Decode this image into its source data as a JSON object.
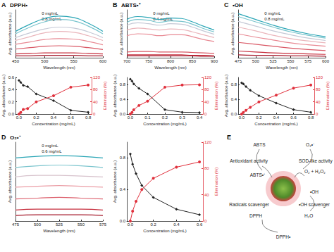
{
  "chart_data": [
    {
      "label": "A",
      "title": "DPPH•",
      "type": "line",
      "x_label": "Wavelength (nm)",
      "y_label": "Avg. absorbance (a.u.)",
      "x": [
        450,
        475,
        500,
        525,
        550,
        575,
        600
      ],
      "xlim": [
        450,
        600
      ],
      "xticks": [
        450,
        500,
        550,
        600
      ],
      "ylim": [
        0,
        1
      ],
      "tick_labels": "x",
      "grid": false,
      "annotations": [
        "0 mg/mL",
        "0.8 mg/mL"
      ],
      "series": [
        {
          "color": "#2ba6b6",
          "values": [
            0.55,
            0.7,
            0.82,
            0.87,
            0.84,
            0.72,
            0.55
          ]
        },
        {
          "color": "#79c4cd",
          "values": [
            0.5,
            0.64,
            0.75,
            0.8,
            0.77,
            0.66,
            0.5
          ]
        },
        {
          "color": "#c5c9d6",
          "values": [
            0.42,
            0.52,
            0.6,
            0.64,
            0.62,
            0.54,
            0.42
          ]
        },
        {
          "color": "#eab5bb",
          "values": [
            0.36,
            0.44,
            0.52,
            0.55,
            0.53,
            0.46,
            0.36
          ]
        },
        {
          "color": "#e88a94",
          "values": [
            0.28,
            0.33,
            0.38,
            0.4,
            0.39,
            0.34,
            0.27
          ]
        },
        {
          "color": "#d95865",
          "values": [
            0.18,
            0.21,
            0.24,
            0.25,
            0.24,
            0.21,
            0.17
          ]
        },
        {
          "color": "#c7303f",
          "values": [
            0.08,
            0.09,
            0.1,
            0.1,
            0.1,
            0.09,
            0.08
          ]
        },
        {
          "color": "#a51b2c",
          "values": [
            0.04,
            0.04,
            0.05,
            0.05,
            0.05,
            0.04,
            0.04
          ]
        }
      ]
    },
    {
      "type": "line",
      "x_label": "Concentration (mg/mL)",
      "y_label": "Avg. absorbance (a.u.)",
      "y2_label": "Elimination (%)",
      "x": [
        0,
        0.02,
        0.05,
        0.1,
        0.2,
        0.4,
        0.6,
        0.8
      ],
      "xlim": [
        -0.04,
        0.84
      ],
      "xticks": [
        {
          "value": 0,
          "label": "0.0"
        },
        0.2,
        0.4,
        0.6,
        0.8
      ],
      "ylim": [
        0,
        0.6
      ],
      "yticks": [
        {
          "value": 0,
          "label": "0.0"
        },
        0.2,
        0.4,
        0.6
      ],
      "y2lim": [
        0,
        120
      ],
      "y2ticks": [
        0,
        40,
        80,
        120
      ],
      "grid": false,
      "series": [
        {
          "color": "#222222",
          "marker": "diamond",
          "line_style": "solid",
          "values": [
            0.55,
            0.52,
            0.47,
            0.45,
            0.33,
            0.22,
            0.06,
            0.03
          ]
        },
        {
          "color": "#e0303c",
          "marker": "circle",
          "line_style": "solid",
          "axis": "y2",
          "values": [
            0,
            5,
            15,
            18,
            40,
            60,
            88,
            95
          ]
        }
      ]
    },
    {
      "label": "B",
      "title": "ABTS•⁺",
      "type": "line",
      "x_label": "Wavelength (nm)",
      "y_label": "Avg. absorbance (a.u.)",
      "x": [
        700,
        725,
        750,
        775,
        800,
        825,
        850,
        875,
        900
      ],
      "xlim": [
        700,
        900
      ],
      "xticks": [
        700,
        750,
        800,
        850,
        900
      ],
      "ylim": [
        0,
        1
      ],
      "tick_labels": "x",
      "grid": false,
      "annotations": [
        "0 mg/mL",
        "0.4 mg/mL"
      ],
      "series": [
        {
          "color": "#2ba6b6",
          "values": [
            0.8,
            0.86,
            0.84,
            0.8,
            0.83,
            0.82,
            0.75,
            0.66,
            0.58
          ]
        },
        {
          "color": "#79c4cd",
          "values": [
            0.74,
            0.8,
            0.78,
            0.74,
            0.77,
            0.76,
            0.7,
            0.61,
            0.54
          ]
        },
        {
          "color": "#c5c9d6",
          "values": [
            0.68,
            0.73,
            0.71,
            0.68,
            0.71,
            0.7,
            0.64,
            0.56,
            0.49
          ]
        },
        {
          "color": "#eab5bb",
          "values": [
            0.58,
            0.62,
            0.6,
            0.58,
            0.6,
            0.59,
            0.54,
            0.48,
            0.42
          ]
        },
        {
          "color": "#e88a94",
          "values": [
            0.46,
            0.5,
            0.49,
            0.46,
            0.48,
            0.48,
            0.44,
            0.38,
            0.34
          ]
        },
        {
          "color": "#d95865",
          "values": [
            0.12,
            0.13,
            0.13,
            0.12,
            0.12,
            0.12,
            0.11,
            0.1,
            0.09
          ]
        },
        {
          "color": "#c7303f",
          "values": [
            0.06,
            0.06,
            0.06,
            0.06,
            0.06,
            0.06,
            0.05,
            0.05,
            0.04
          ]
        },
        {
          "color": "#a51b2c",
          "values": [
            0.04,
            0.04,
            0.04,
            0.04,
            0.04,
            0.04,
            0.04,
            0.03,
            0.03
          ]
        }
      ]
    },
    {
      "type": "line",
      "x_label": "Concentration (mg/mL)",
      "y_label": "Avg. absorbance (a.u.)",
      "y2_label": "Elimination (%)",
      "x": [
        0,
        0.01,
        0.02,
        0.05,
        0.1,
        0.2,
        0.3,
        0.4
      ],
      "xlim": [
        -0.02,
        0.42
      ],
      "xticks": [
        {
          "value": 0,
          "label": "0.0"
        },
        0.1,
        0.2,
        0.3,
        0.4
      ],
      "ylim": [
        0,
        1
      ],
      "yticks": [
        {
          "value": 0,
          "label": "0.0"
        },
        0.4,
        0.8
      ],
      "y2lim": [
        0,
        120
      ],
      "y2ticks": [
        0,
        40,
        80,
        120
      ],
      "grid": false,
      "series": [
        {
          "color": "#222222",
          "marker": "diamond",
          "line_style": "solid",
          "values": [
            0.95,
            0.9,
            0.82,
            0.7,
            0.55,
            0.12,
            0.05,
            0.04
          ]
        },
        {
          "color": "#e0303c",
          "marker": "circle",
          "line_style": "solid",
          "axis": "y2",
          "values": [
            0,
            5,
            14,
            28,
            42,
            88,
            95,
            96
          ]
        }
      ]
    },
    {
      "label": "C",
      "title": "•OH",
      "type": "line",
      "x_label": "Wavelength (nm)",
      "y_label": "Avg. absorbance (a.u.)",
      "x": [
        475,
        500,
        525,
        550,
        575,
        600
      ],
      "xlim": [
        475,
        600
      ],
      "xticks": [
        475,
        500,
        525,
        550,
        575,
        600
      ],
      "ylim": [
        0,
        1
      ],
      "tick_labels": "x",
      "grid": false,
      "annotations": [
        "0 mg/mL",
        "0.8 mg/mL"
      ],
      "series": [
        {
          "color": "#2ba6b6",
          "values": [
            0.92,
            0.8,
            0.68,
            0.58,
            0.5,
            0.44
          ]
        },
        {
          "color": "#79c4cd",
          "values": [
            0.86,
            0.75,
            0.64,
            0.54,
            0.47,
            0.41
          ]
        },
        {
          "color": "#c5c9d6",
          "values": [
            0.76,
            0.66,
            0.56,
            0.48,
            0.41,
            0.36
          ]
        },
        {
          "color": "#eab5bb",
          "values": [
            0.64,
            0.56,
            0.47,
            0.4,
            0.35,
            0.31
          ]
        },
        {
          "color": "#e88a94",
          "values": [
            0.5,
            0.43,
            0.37,
            0.31,
            0.27,
            0.24
          ]
        },
        {
          "color": "#d95865",
          "values": [
            0.32,
            0.28,
            0.24,
            0.2,
            0.17,
            0.15
          ]
        },
        {
          "color": "#c7303f",
          "values": [
            0.14,
            0.12,
            0.1,
            0.09,
            0.08,
            0.07
          ]
        },
        {
          "color": "#a51b2c",
          "values": [
            0.06,
            0.05,
            0.05,
            0.04,
            0.04,
            0.03
          ]
        }
      ]
    },
    {
      "type": "line",
      "x_label": "Concentration (mg/mL)",
      "y_label": "Avg. absorbance (a.u.)",
      "y2_label": "Elimination (%)",
      "x": [
        0,
        0.02,
        0.05,
        0.1,
        0.2,
        0.4,
        0.6,
        0.8
      ],
      "xlim": [
        -0.04,
        0.84
      ],
      "xticks": [
        {
          "value": 0,
          "label": "0.0"
        },
        0.2,
        0.4,
        0.6,
        0.8
      ],
      "ylim": [
        0,
        1
      ],
      "yticks": [
        {
          "value": 0,
          "label": "0.0"
        },
        0.4,
        0.8
      ],
      "y2lim": [
        0,
        120
      ],
      "y2ticks": [
        0,
        40,
        80,
        120
      ],
      "grid": false,
      "series": [
        {
          "color": "#222222",
          "marker": "diamond",
          "line_style": "solid",
          "values": [
            0.85,
            0.82,
            0.75,
            0.65,
            0.5,
            0.3,
            0.12,
            0.05
          ]
        },
        {
          "color": "#e0303c",
          "marker": "circle",
          "line_style": "solid",
          "axis": "y2",
          "values": [
            0,
            5,
            12,
            22,
            40,
            62,
            85,
            95
          ]
        }
      ]
    },
    {
      "label": "D",
      "title": "O₂•⁻",
      "type": "line",
      "x_label": "Wavelength (nm)",
      "y_label": "Avg. absorbance (a.u.)",
      "x": [
        475,
        500,
        525,
        550,
        575
      ],
      "xlim": [
        475,
        575
      ],
      "xticks": [
        475,
        500,
        525,
        550,
        575
      ],
      "ylim": [
        0,
        1
      ],
      "tick_labels": "x",
      "grid": false,
      "annotations": [
        "0 mg/mL",
        "0.6 mg/mL"
      ],
      "series": [
        {
          "color": "#2ba6b6",
          "values": [
            0.8,
            0.82,
            0.83,
            0.82,
            0.8
          ]
        },
        {
          "color": "#7cc5ce",
          "values": [
            0.68,
            0.7,
            0.71,
            0.7,
            0.68
          ]
        },
        {
          "color": "#d7c2cc",
          "values": [
            0.56,
            0.58,
            0.58,
            0.57,
            0.56
          ]
        },
        {
          "color": "#eb9ea6",
          "values": [
            0.43,
            0.44,
            0.45,
            0.44,
            0.43
          ]
        },
        {
          "color": "#dd6470",
          "values": [
            0.28,
            0.29,
            0.3,
            0.29,
            0.28
          ]
        },
        {
          "color": "#c7303f",
          "values": [
            0.14,
            0.15,
            0.15,
            0.15,
            0.14
          ]
        },
        {
          "color": "#a51b2c",
          "values": [
            0.07,
            0.08,
            0.08,
            0.08,
            0.07
          ]
        }
      ]
    },
    {
      "type": "line",
      "x_label": "Concentration (mg/mL)",
      "y_label": "Avg. absorbance (a.u.)",
      "y2_label": "Elimination (%)",
      "x": [
        0,
        0.02,
        0.05,
        0.1,
        0.2,
        0.4,
        0.6
      ],
      "xlim": [
        -0.03,
        0.63
      ],
      "xticks": [
        {
          "value": 0,
          "label": "0.0"
        },
        0.2,
        0.4,
        0.6
      ],
      "ylim": [
        0,
        1
      ],
      "yticks": [
        {
          "value": 0,
          "label": "0.0"
        },
        0.4,
        0.8
      ],
      "y2lim": [
        0,
        120
      ],
      "y2ticks": [
        0,
        40,
        80,
        120
      ],
      "grid": false,
      "series": [
        {
          "color": "#222222",
          "marker": "diamond",
          "line_style": "solid",
          "values": [
            0.85,
            0.72,
            0.6,
            0.45,
            0.3,
            0.15,
            0.08
          ]
        },
        {
          "color": "#e0303c",
          "marker": "circle",
          "line_style": "solid",
          "axis": "y2",
          "values": [
            0,
            15,
            30,
            48,
            65,
            82,
            90
          ]
        }
      ]
    }
  ],
  "diagram": {
    "label": "E",
    "texts": [
      "ABTS",
      "O₂•⁻",
      "Antioxidant activity",
      "SOD-like activity",
      "O₂ + H₂O₂",
      "ABTS•⁺",
      "•OH",
      "Radicals scavenger",
      "•OH scavenger",
      "DPPH",
      "H₂O",
      "DPPH•"
    ]
  }
}
